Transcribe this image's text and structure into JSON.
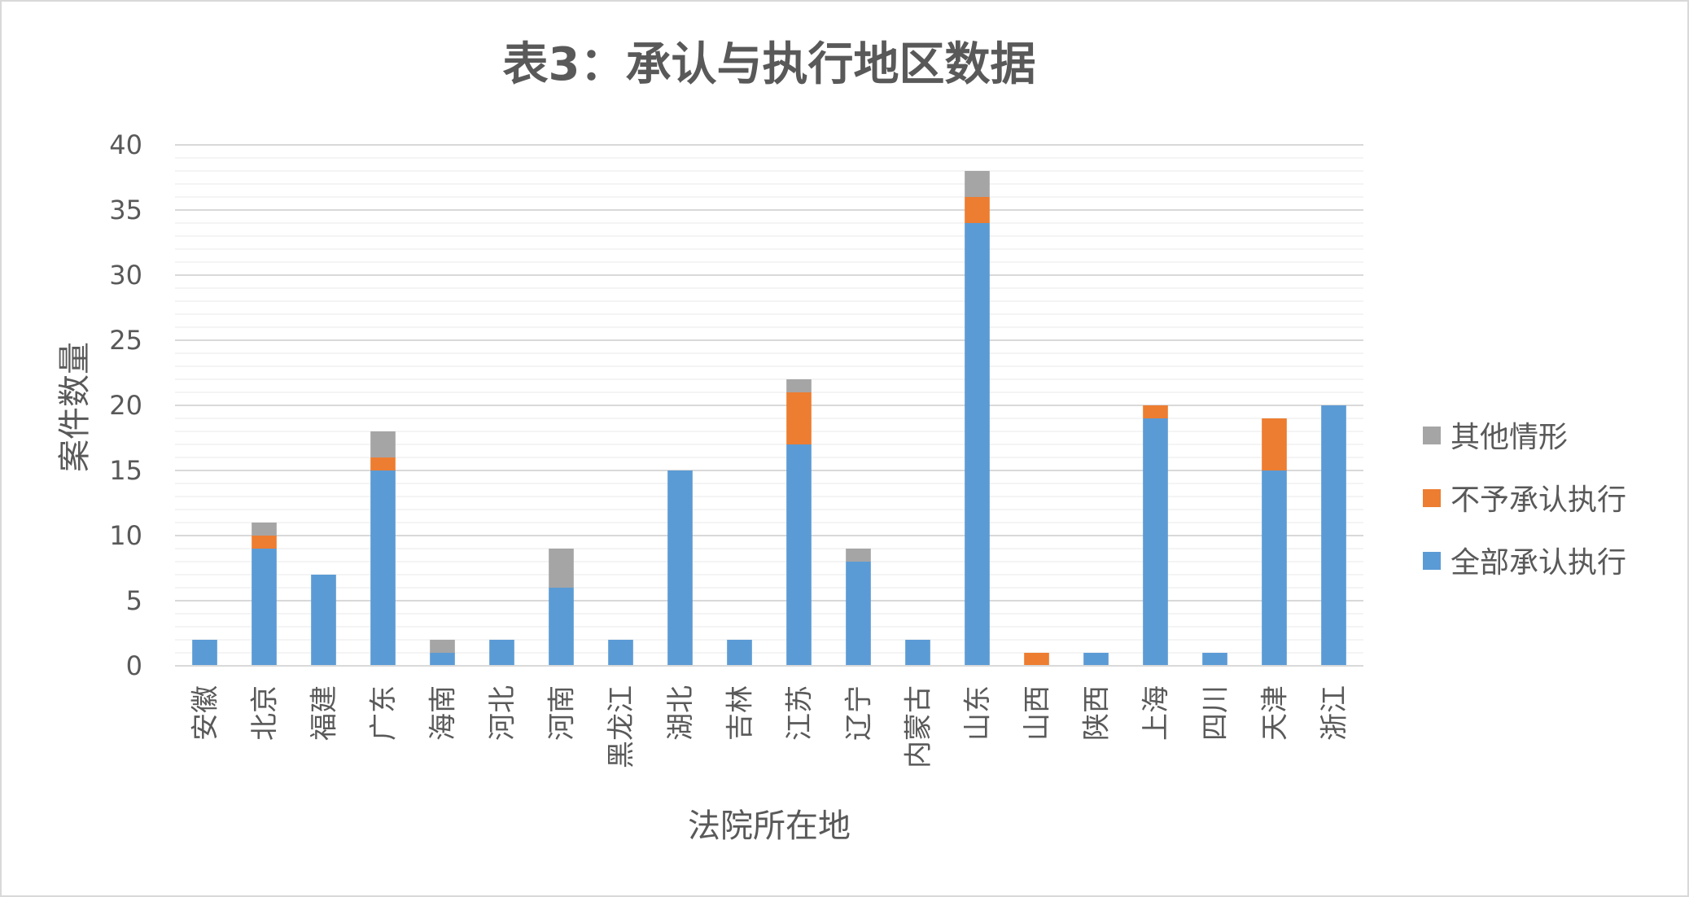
{
  "chart_data": {
    "type": "bar",
    "stacked": true,
    "title": "表3：承认与执行地区数据",
    "xlabel": "法院所在地",
    "ylabel": "案件数量",
    "ylim": [
      0,
      40
    ],
    "yticks": [
      "0",
      "5",
      "10",
      "15",
      "20",
      "25",
      "30",
      "35",
      "40"
    ],
    "grid": true,
    "legend_position": "right",
    "categories": [
      "安徽",
      "北京",
      "福建",
      "广东",
      "海南",
      "河北",
      "河南",
      "黑龙江",
      "湖北",
      "吉林",
      "江苏",
      "辽宁",
      "内蒙古",
      "山东",
      "山西",
      "陕西",
      "上海",
      "四川",
      "天津",
      "浙江"
    ],
    "series": [
      {
        "name": "全部承认执行",
        "color": "#5b9bd5",
        "values": [
          2,
          9,
          7,
          15,
          1,
          2,
          6,
          2,
          15,
          2,
          17,
          8,
          2,
          34,
          0,
          1,
          19,
          1,
          15,
          20
        ]
      },
      {
        "name": "不予承认执行",
        "color": "#ed7d31",
        "values": [
          0,
          1,
          0,
          1,
          0,
          0,
          0,
          0,
          0,
          0,
          4,
          0,
          0,
          2,
          1,
          0,
          1,
          0,
          4,
          0
        ]
      },
      {
        "name": "其他情形",
        "color": "#a5a5a5",
        "values": [
          0,
          1,
          0,
          2,
          1,
          0,
          3,
          0,
          0,
          0,
          1,
          1,
          0,
          2,
          0,
          0,
          0,
          0,
          0,
          0
        ]
      }
    ],
    "legend_order": [
      "其他情形",
      "不予承认执行",
      "全部承认执行"
    ]
  }
}
